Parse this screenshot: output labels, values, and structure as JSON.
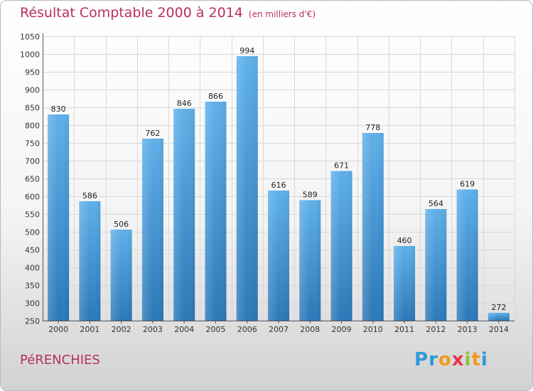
{
  "header": {
    "title": "Résultat Comptable 2000 à 2014",
    "unit": "(en milliers d'€)"
  },
  "footer": {
    "commune": "PéRENCHIES",
    "logo_letters": [
      "P",
      "r",
      "o",
      "x",
      "i",
      "t",
      "i"
    ],
    "logo_colors": [
      "#2e9ad6",
      "#2e9ad6",
      "#f29a1f",
      "#e8344e",
      "#8bc53f",
      "#f29a1f",
      "#2e9ad6"
    ]
  },
  "colors": {
    "title": "#b8305a",
    "bar_light": "#5fb0ea",
    "bar_dark": "#2b78b8",
    "grid": "#d8d8d8"
  },
  "chart_data": {
    "type": "bar",
    "title": "Résultat Comptable 2000 à 2014",
    "ylabel": "en milliers d'€",
    "xlabel": "",
    "categories": [
      "2000",
      "2001",
      "2002",
      "2003",
      "2004",
      "2005",
      "2006",
      "2007",
      "2008",
      "2009",
      "2010",
      "2011",
      "2012",
      "2013",
      "2014"
    ],
    "values": [
      830,
      586,
      506,
      762,
      846,
      866,
      994,
      616,
      589,
      671,
      778,
      460,
      564,
      619,
      272
    ],
    "ylim": [
      250,
      1050
    ],
    "ytick_step": 50,
    "grid": true
  }
}
